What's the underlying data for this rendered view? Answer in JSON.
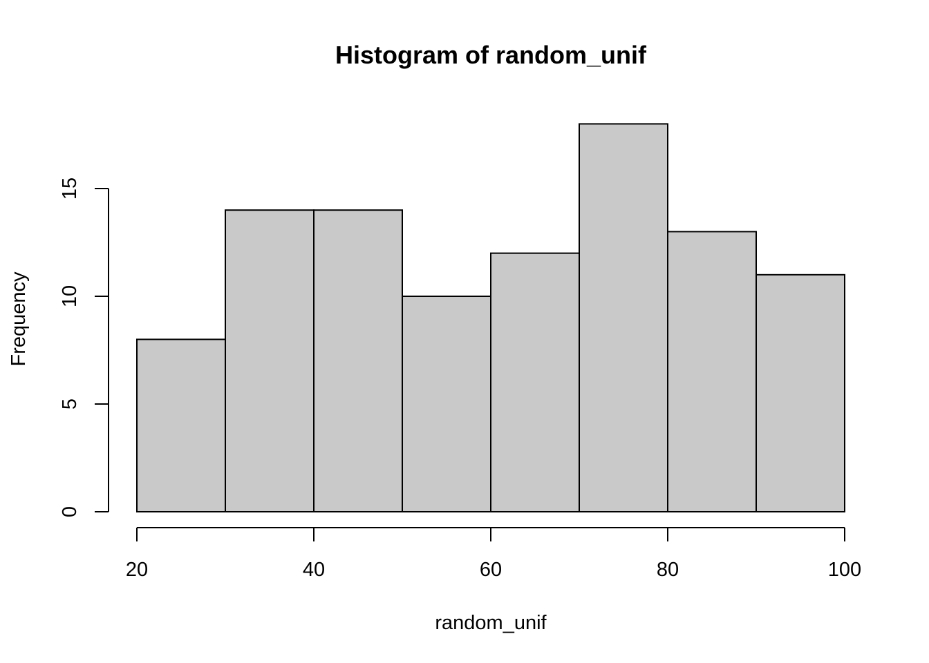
{
  "chart_data": {
    "type": "bar",
    "title": "Histogram of random_unif",
    "xlabel": "random_unif",
    "ylabel": "Frequency",
    "bin_edges": [
      20,
      30,
      40,
      50,
      60,
      70,
      80,
      90,
      100
    ],
    "values": [
      8,
      14,
      14,
      10,
      12,
      18,
      13,
      11
    ],
    "xlim": [
      20,
      100
    ],
    "ylim": [
      0,
      18
    ],
    "x_ticks": [
      20,
      40,
      60,
      80,
      100
    ],
    "y_ticks": [
      0,
      5,
      10,
      15
    ],
    "grid": false,
    "colors": {
      "bar_fill": "#c9c9c9",
      "bar_stroke": "#000000",
      "background": "#ffffff"
    }
  }
}
